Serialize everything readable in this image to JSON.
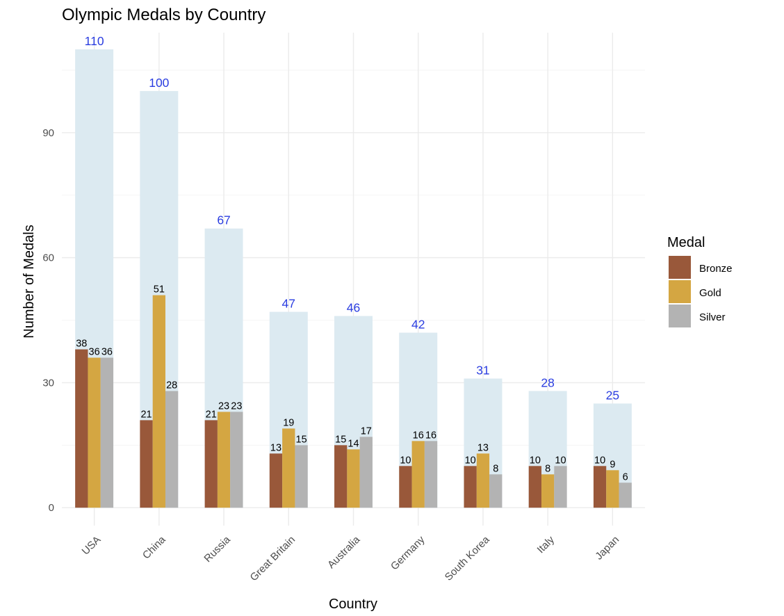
{
  "chart_data": {
    "type": "bar",
    "title": "Olympic Medals by Country",
    "xlabel": "Country",
    "ylabel": "Number of Medals",
    "categories": [
      "USA",
      "China",
      "Russia",
      "Great Britain",
      "Australia",
      "Germany",
      "South Korea",
      "Italy",
      "Japan"
    ],
    "totals": [
      110,
      100,
      67,
      47,
      46,
      42,
      31,
      28,
      25
    ],
    "series": [
      {
        "name": "Bronze",
        "color": "#99583a",
        "values": [
          38,
          21,
          21,
          13,
          15,
          10,
          10,
          10,
          10
        ]
      },
      {
        "name": "Gold",
        "color": "#d4a642",
        "values": [
          36,
          51,
          23,
          19,
          14,
          16,
          13,
          8,
          9
        ]
      },
      {
        "name": "Silver",
        "color": "#b3b3b3",
        "values": [
          36,
          28,
          23,
          15,
          17,
          16,
          8,
          10,
          6
        ]
      }
    ],
    "total_bar_color": "#dceaf1",
    "total_label_color": "#2a3de0",
    "yticks": [
      0,
      30,
      60,
      90
    ],
    "ylim": [
      -4.3,
      114
    ],
    "grid": true,
    "legend": {
      "title": "Medal",
      "position": "right"
    }
  }
}
